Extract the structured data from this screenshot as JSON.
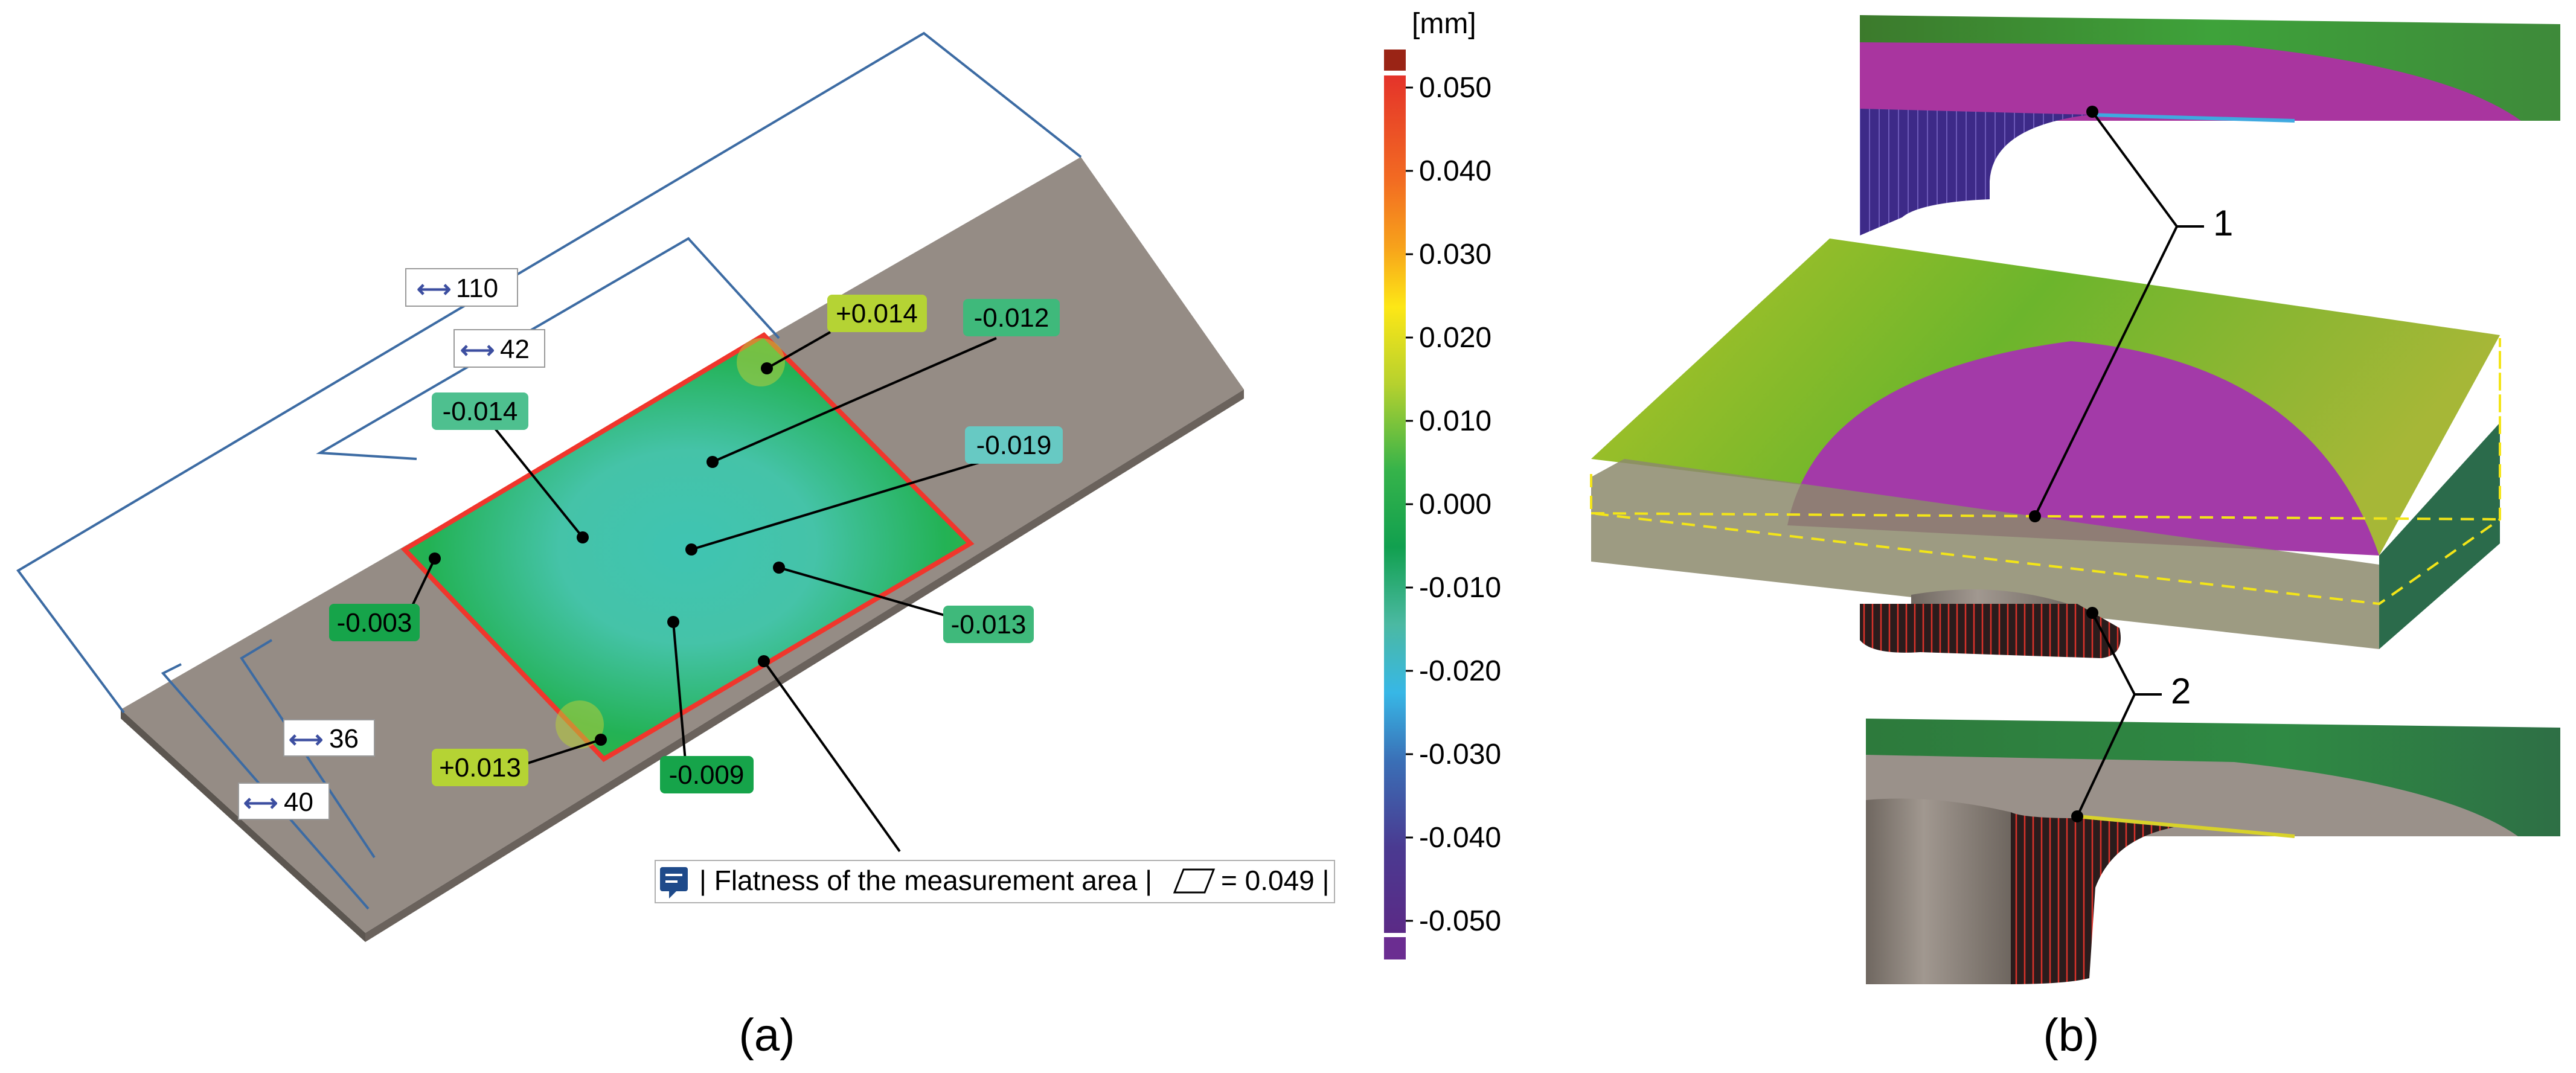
{
  "panel_a": {
    "dimensions": {
      "d110": "110",
      "d42": "42",
      "d36": "36",
      "d40": "40"
    },
    "deviation_labels": [
      {
        "text": "+0.014",
        "color": "#b5d334"
      },
      {
        "text": "-0.012",
        "color": "#3fb97b"
      },
      {
        "text": "-0.014",
        "color": "#4ec08f"
      },
      {
        "text": "-0.019",
        "color": "#67c9c3"
      },
      {
        "text": "-0.003",
        "color": "#16a44a"
      },
      {
        "text": "-0.013",
        "color": "#3fb97b"
      },
      {
        "text": "+0.013",
        "color": "#b5d334"
      },
      {
        "text": "-0.009",
        "color": "#16a44a"
      }
    ],
    "annotation": {
      "part1": "| Flatness of the measurement area |",
      "part2": "= 0.049 |"
    },
    "caption": "(a)"
  },
  "color_scale": {
    "unit": "[mm]",
    "ticks": [
      "0.050",
      "0.040",
      "0.030",
      "0.020",
      "0.010",
      "0.000",
      "-0.010",
      "-0.020",
      "-0.030",
      "-0.040",
      "-0.050"
    ],
    "top_color": "#9a2415",
    "bottom_color": "#6b2d91"
  },
  "panel_b": {
    "label1": "1",
    "label2": "2",
    "caption": "(b)"
  }
}
